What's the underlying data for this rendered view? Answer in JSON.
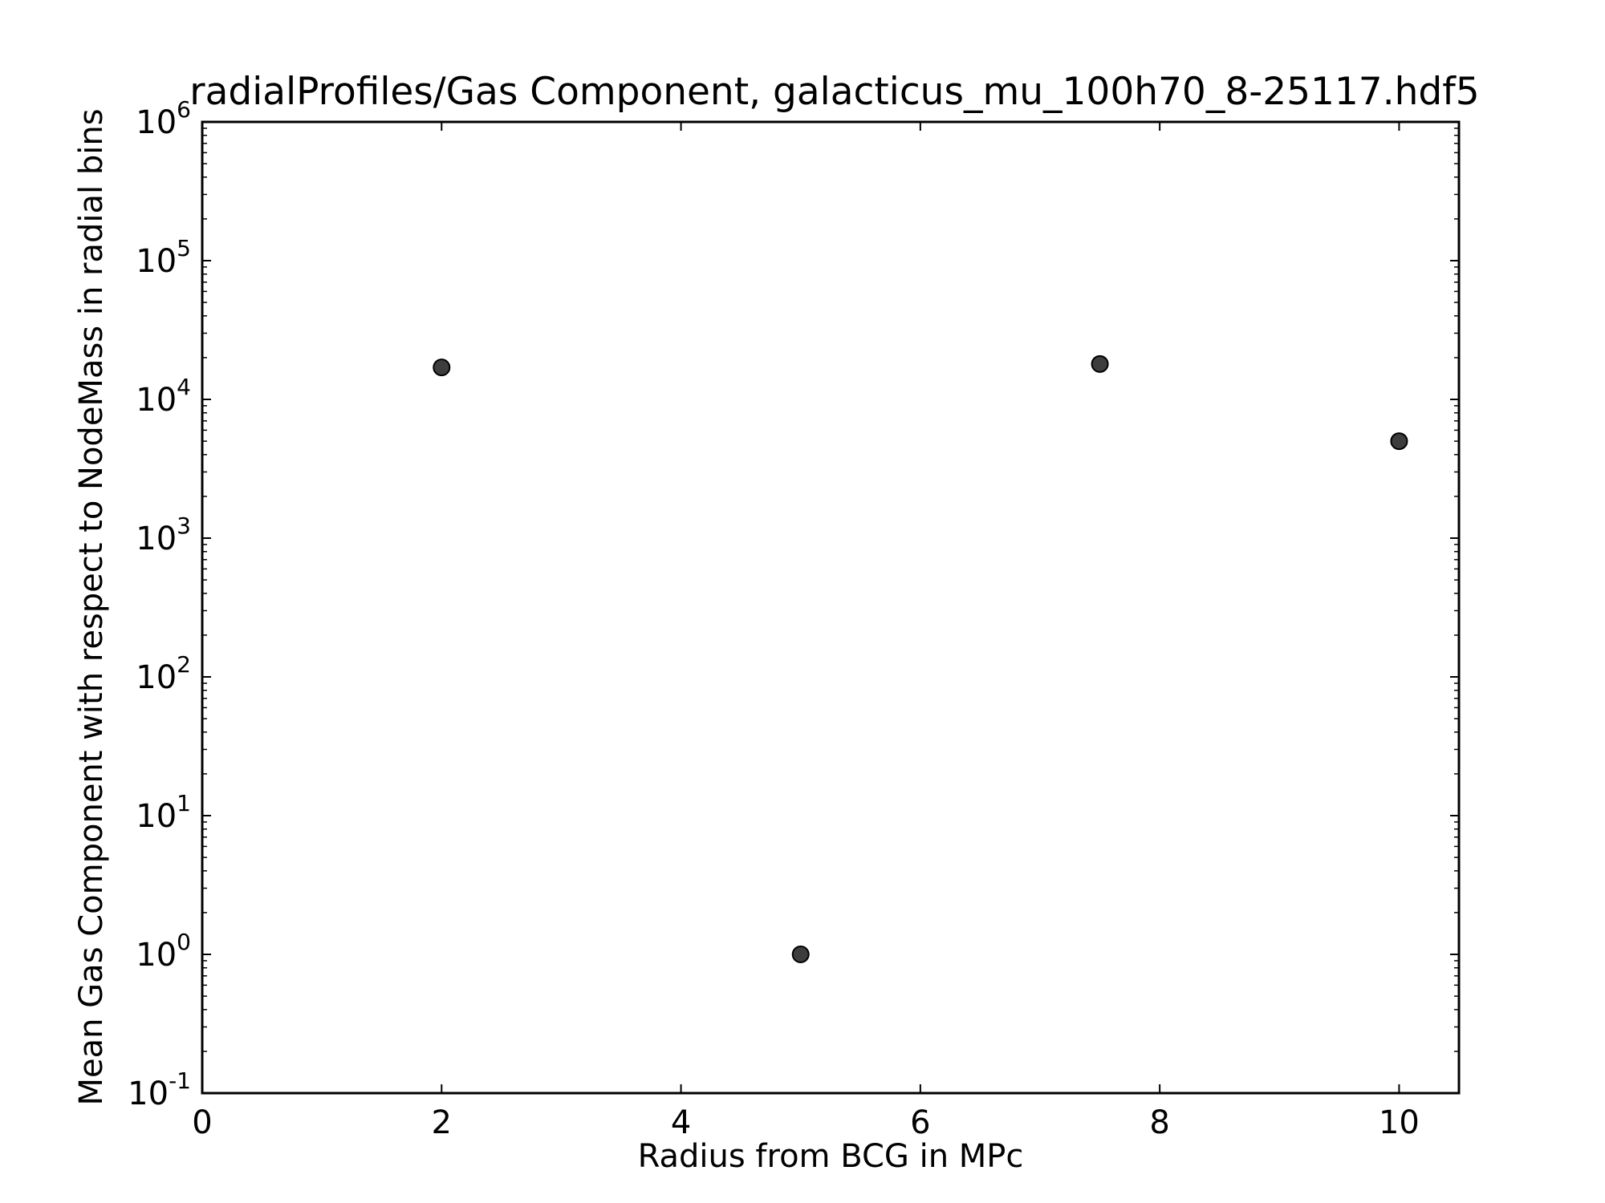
{
  "chart_data": {
    "type": "scatter",
    "title": "radialProfiles/Gas Component, galacticus_mu_100h70_8-25117.hdf5",
    "xlabel": "Radius from BCG in MPc",
    "ylabel": "Mean Gas Component with respect to NodeMass in radial bins",
    "xlim": [
      0,
      10.5
    ],
    "ylim": [
      0.1,
      1000000
    ],
    "yscale": "log",
    "grid": false,
    "x_ticks": [
      {
        "value": 0,
        "label": "0"
      },
      {
        "value": 2,
        "label": "2"
      },
      {
        "value": 4,
        "label": "4"
      },
      {
        "value": 6,
        "label": "6"
      },
      {
        "value": 8,
        "label": "8"
      },
      {
        "value": 10,
        "label": "10"
      }
    ],
    "y_ticks": [
      {
        "exp": -1,
        "base": "10",
        "sup": "-1"
      },
      {
        "exp": 0,
        "base": "10",
        "sup": "0"
      },
      {
        "exp": 1,
        "base": "10",
        "sup": "1"
      },
      {
        "exp": 2,
        "base": "10",
        "sup": "2"
      },
      {
        "exp": 3,
        "base": "10",
        "sup": "3"
      },
      {
        "exp": 4,
        "base": "10",
        "sup": "4"
      },
      {
        "exp": 5,
        "base": "10",
        "sup": "5"
      },
      {
        "exp": 6,
        "base": "10",
        "sup": "6"
      }
    ],
    "series": [
      {
        "color": "#3d3d3d",
        "marker": "circle",
        "points": [
          {
            "x": 2,
            "y": 17000
          },
          {
            "x": 5,
            "y": 1
          },
          {
            "x": 7.5,
            "y": 18000
          },
          {
            "x": 10,
            "y": 5000
          }
        ]
      }
    ]
  }
}
